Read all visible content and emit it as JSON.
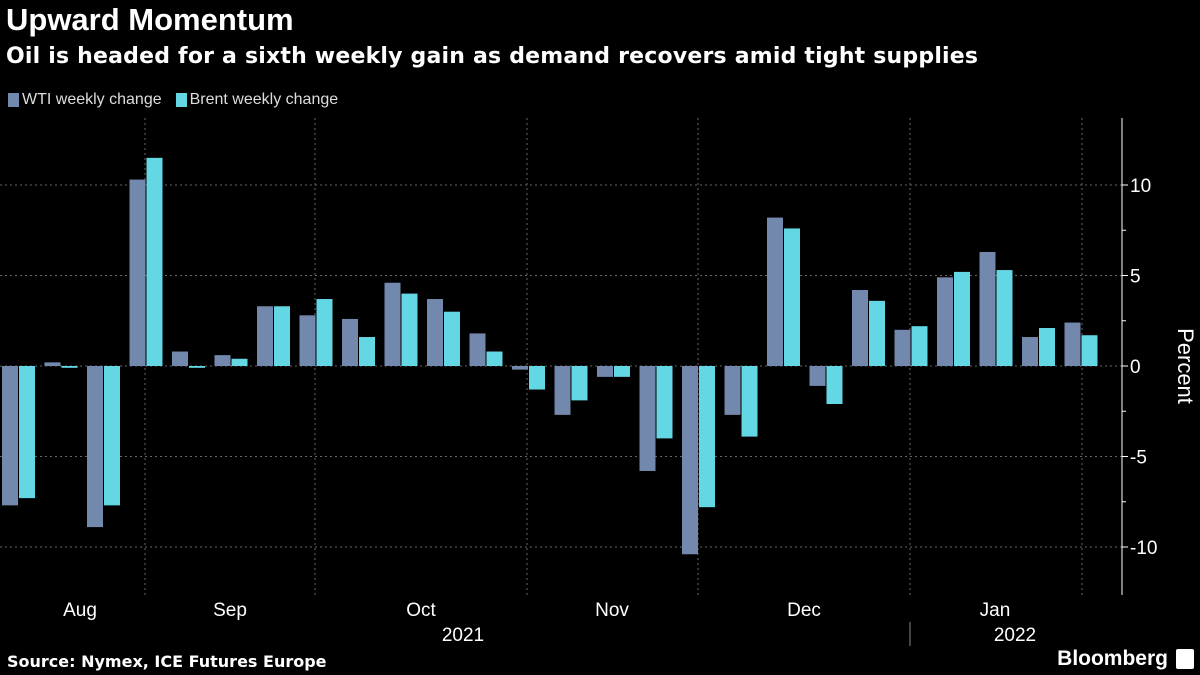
{
  "header": {
    "title": "Upward Momentum",
    "subtitle": "Oil is headed for a sixth weekly gain as demand recovers amid tight supplies"
  },
  "footer": {
    "source": "Source: Nymex, ICE Futures Europe",
    "brand": "Bloomberg"
  },
  "chart_data": {
    "type": "bar",
    "ylabel": "Percent",
    "ylim": [
      -12.5,
      12.5
    ],
    "yticks": [
      10,
      5,
      0,
      -5,
      -10
    ],
    "grid": true,
    "legend_position": "top-left",
    "x_month_labels": [
      "Aug",
      "Sep",
      "Oct",
      "Nov",
      "Dec",
      "Jan"
    ],
    "x_year_labels": [
      "2021",
      "2022"
    ],
    "series": [
      {
        "name": "WTI weekly change",
        "color": "#7289ad",
        "values": [
          -7.7,
          0.2,
          -8.9,
          10.3,
          0.8,
          0.6,
          3.3,
          2.8,
          2.6,
          4.6,
          3.7,
          1.8,
          -0.2,
          -2.7,
          -0.6,
          -5.8,
          -10.4,
          -2.7,
          8.2,
          -1.1,
          4.2,
          2.0,
          4.9,
          6.3,
          1.6,
          2.4
        ]
      },
      {
        "name": "Brent weekly change",
        "color": "#63d8e4",
        "values": [
          -7.3,
          -0.1,
          -7.7,
          11.5,
          -0.1,
          0.4,
          3.3,
          3.7,
          1.6,
          4.0,
          3.0,
          0.8,
          -1.3,
          -1.9,
          -0.6,
          -4.0,
          -7.8,
          -3.9,
          7.6,
          -2.1,
          3.6,
          2.2,
          5.2,
          5.3,
          2.1,
          1.7
        ]
      }
    ]
  }
}
